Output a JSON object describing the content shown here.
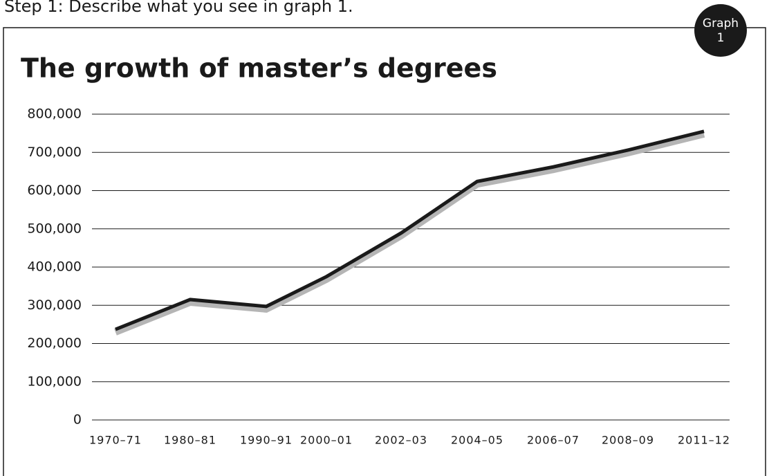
{
  "header": {
    "instruction": "Step 1: Describe what you see in graph 1.",
    "badge": [
      "Graph",
      "1"
    ]
  },
  "chart_data": {
    "type": "line",
    "title": "The growth of master’s degrees",
    "categories": [
      "1970–71",
      "1980–81",
      "1990–91",
      "2000–01",
      "2002–03",
      "2004–05",
      "2006–07",
      "2008–09",
      "2011–12"
    ],
    "series": [
      {
        "name": "Master’s degrees",
        "color": "#1a1a1a",
        "values": [
          237000,
          315000,
          297000,
          375000,
          489000,
          624000,
          662000,
          706000,
          755000
        ]
      }
    ],
    "ylim": [
      0,
      800000
    ],
    "yticks": [
      0,
      {
        "value": 100000,
        "label": "100,000"
      },
      {
        "value": 200000,
        "label": "200,000"
      },
      {
        "value": 300000,
        "label": "300,000"
      },
      {
        "value": 400000,
        "label": "400,000"
      },
      {
        "value": 500000,
        "label": "500,000"
      },
      {
        "value": 600000,
        "label": "600,000"
      },
      {
        "value": 700000,
        "label": "700,000"
      },
      {
        "value": 800000,
        "label": "800,000"
      }
    ],
    "grid": true
  }
}
